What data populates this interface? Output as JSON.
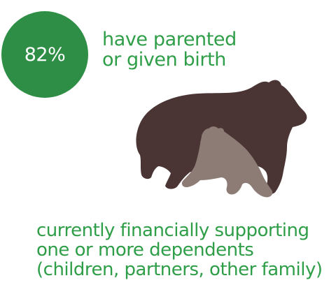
{
  "stat": {
    "value": "82%",
    "line1": "have parented",
    "line2": "or given birth"
  },
  "caption": {
    "line1": "currently financially supporting",
    "line2": "one or more dependents",
    "line3": "(children, partners, other family)"
  },
  "illustration": {
    "name": "bear-and-cub",
    "colors": {
      "adult": "#4a3434",
      "cub": "#8d7b75"
    }
  },
  "colors": {
    "accent": "#2f8e45",
    "text_green": "#2f9e48",
    "background": "#ffffff"
  }
}
